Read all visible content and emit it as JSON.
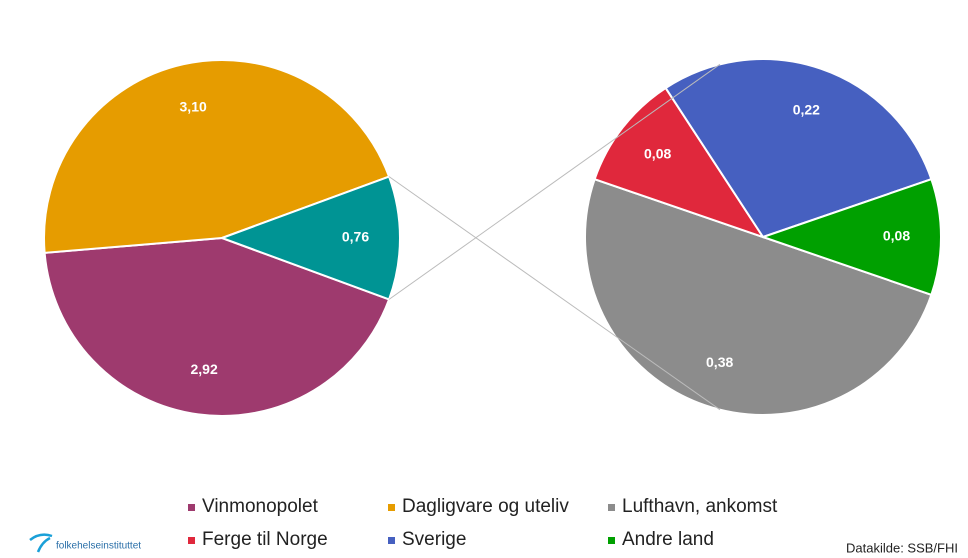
{
  "chart_data": [
    {
      "type": "pie",
      "categories": [
        "Vinmonopolet",
        "Dagligvare og uteliv",
        null
      ],
      "values": [
        2.92,
        3.1,
        0.76
      ],
      "value_labels": [
        "2,92",
        "3,10",
        "0,76"
      ],
      "colors": [
        "#9e3a6e",
        "#e69c00",
        "#009494"
      ]
    },
    {
      "type": "pie",
      "categories": [
        "Lufthavn, ankomst",
        "Ferge til Norge",
        "Sverige",
        "Andre land"
      ],
      "values": [
        0.38,
        0.08,
        0.22,
        0.08
      ],
      "value_labels": [
        "0,38",
        "0,08",
        "0,22",
        "0,08"
      ],
      "colors": [
        "#8c8c8c",
        "#e0283c",
        "#4660c0",
        "#00a000"
      ]
    }
  ],
  "footer": {
    "logo": "folkehelseinstituttet",
    "source": "Datakilde: SSB/FHI"
  }
}
